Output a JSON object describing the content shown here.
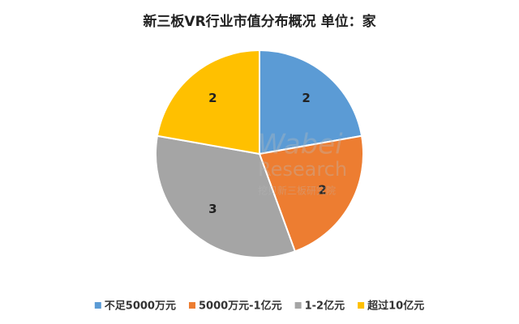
{
  "chart_data": {
    "type": "pie",
    "title": "新三板VR行业市值分布概况  单位：家",
    "categories": [
      "不足5000万元",
      "5000万元-1亿元",
      "1-2亿元",
      "超过10亿元"
    ],
    "values": [
      2,
      2,
      3,
      2
    ],
    "colors": [
      "#5b9bd5",
      "#ed7d31",
      "#a5a5a5",
      "#ffc000"
    ],
    "legend": "bottom",
    "watermark": {
      "brand": "Wabei",
      "subtitle": "Research",
      "org": "挖贝新三板研究院"
    }
  }
}
